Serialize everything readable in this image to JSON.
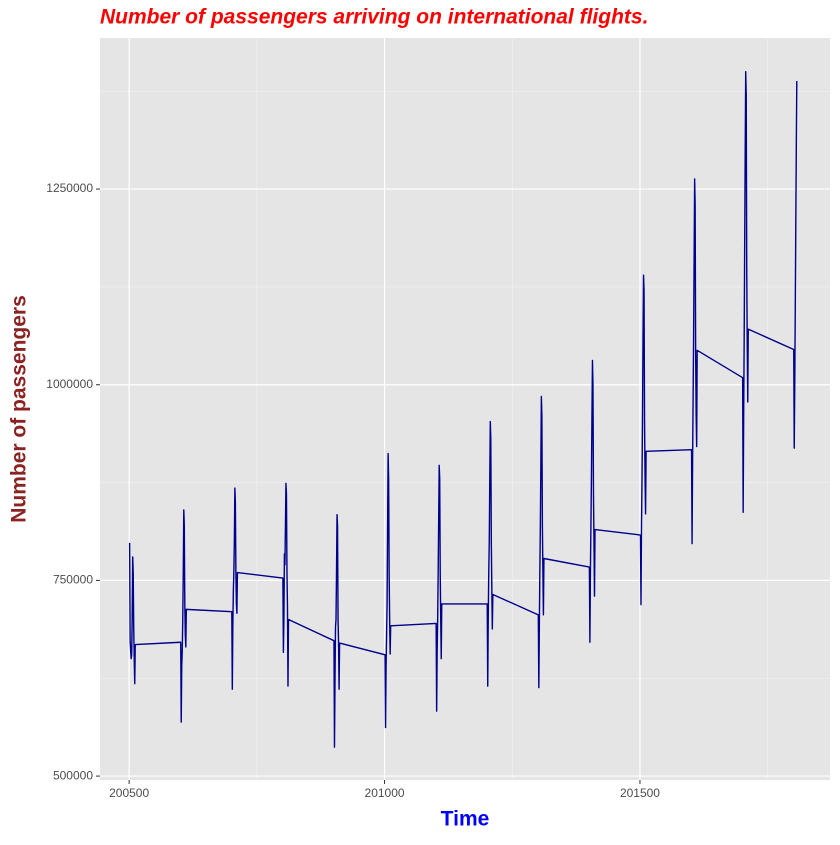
{
  "chart_data": {
    "type": "line",
    "title": "Number of passengers arriving on international flights.",
    "x_label": "Time",
    "y_label": "Number of passengers",
    "color": "#00008b",
    "xlim": [
      200443,
      201872
    ],
    "xticks": [
      200500,
      201000,
      201500
    ],
    "ylim": [
      495000,
      1443000
    ],
    "yticks": [
      500000,
      750000,
      1000000,
      1250000
    ],
    "grid": true,
    "x": [
      200501,
      200502,
      200503,
      200504,
      200505,
      200506,
      200507,
      200508,
      200509,
      200510,
      200511,
      200512,
      200601,
      200602,
      200603,
      200604,
      200605,
      200606,
      200607,
      200608,
      200609,
      200610,
      200611,
      200612,
      200701,
      200702,
      200703,
      200704,
      200705,
      200706,
      200707,
      200708,
      200709,
      200710,
      200711,
      200712,
      200801,
      200802,
      200803,
      200804,
      200805,
      200806,
      200807,
      200808,
      200809,
      200810,
      200811,
      200812,
      200901,
      200902,
      200903,
      200904,
      200905,
      200906,
      200907,
      200908,
      200909,
      200910,
      200911,
      200912,
      201001,
      201002,
      201003,
      201004,
      201005,
      201006,
      201007,
      201008,
      201009,
      201010,
      201011,
      201012,
      201101,
      201102,
      201103,
      201104,
      201105,
      201106,
      201107,
      201108,
      201109,
      201110,
      201111,
      201112,
      201201,
      201202,
      201203,
      201204,
      201205,
      201206,
      201207,
      201208,
      201209,
      201210,
      201211,
      201212,
      201301,
      201302,
      201303,
      201304,
      201305,
      201306,
      201307,
      201308,
      201309,
      201310,
      201311,
      201312,
      201401,
      201402,
      201403,
      201404,
      201405,
      201406,
      201407,
      201408,
      201409,
      201410,
      201411,
      201412,
      201501,
      201502,
      201503,
      201504,
      201505,
      201506,
      201507,
      201508,
      201509,
      201510,
      201511,
      201512,
      201601,
      201602,
      201603,
      201604,
      201605,
      201606,
      201607,
      201608,
      201609,
      201610,
      201611,
      201612,
      201701,
      201702,
      201703,
      201704,
      201705,
      201706,
      201707,
      201708,
      201709,
      201710,
      201711,
      201712,
      201801,
      201802,
      201803,
      201804,
      201805,
      201806,
      201807
    ],
    "values": [
      798000,
      672000,
      660000,
      650000,
      655000,
      700000,
      780000,
      760000,
      690000,
      650000,
      618000,
      668000,
      671000,
      569000,
      640000,
      660000,
      700000,
      760000,
      840000,
      820000,
      720000,
      680000,
      665000,
      713000,
      710000,
      611000,
      690000,
      735000,
      760000,
      800000,
      868000,
      850000,
      760000,
      720000,
      708000,
      760000,
      753000,
      658000,
      700000,
      784000,
      770000,
      820000,
      874000,
      860000,
      760000,
      715000,
      615000,
      700000,
      673000,
      537000,
      620000,
      690000,
      700000,
      760000,
      834000,
      820000,
      700000,
      670000,
      611000,
      670000,
      655000,
      562000,
      640000,
      680000,
      720000,
      820000,
      912000,
      880000,
      760000,
      700000,
      656000,
      692000,
      695000,
      583000,
      660000,
      700000,
      760000,
      830000,
      897000,
      880000,
      760000,
      700000,
      650000,
      720000,
      720000,
      615000,
      700000,
      760000,
      800000,
      880000,
      953000,
      930000,
      800000,
      740000,
      688000,
      732000,
      706000,
      613000,
      690000,
      760000,
      820000,
      900000,
      985000,
      960000,
      820000,
      760000,
      706000,
      778000,
      767000,
      671000,
      760000,
      820000,
      880000,
      960000,
      1031000,
      1000000,
      860000,
      800000,
      730000,
      815000,
      808000,
      719000,
      820000,
      880000,
      960000,
      1060000,
      1140000,
      1120000,
      950000,
      880000,
      835000,
      915000,
      917000,
      797000,
      900000,
      980000,
      1060000,
      1160000,
      1263000,
      1230000,
      1040000,
      960000,
      921000,
      1044000,
      1009000,
      837000,
      960000,
      1060000,
      1180000,
      1300000,
      1400000,
      1370000,
      1150000,
      1050000,
      978000,
      1071000,
      1045000,
      919000,
      1000000,
      1095000,
      1200000,
      1300000,
      1388000
    ]
  }
}
